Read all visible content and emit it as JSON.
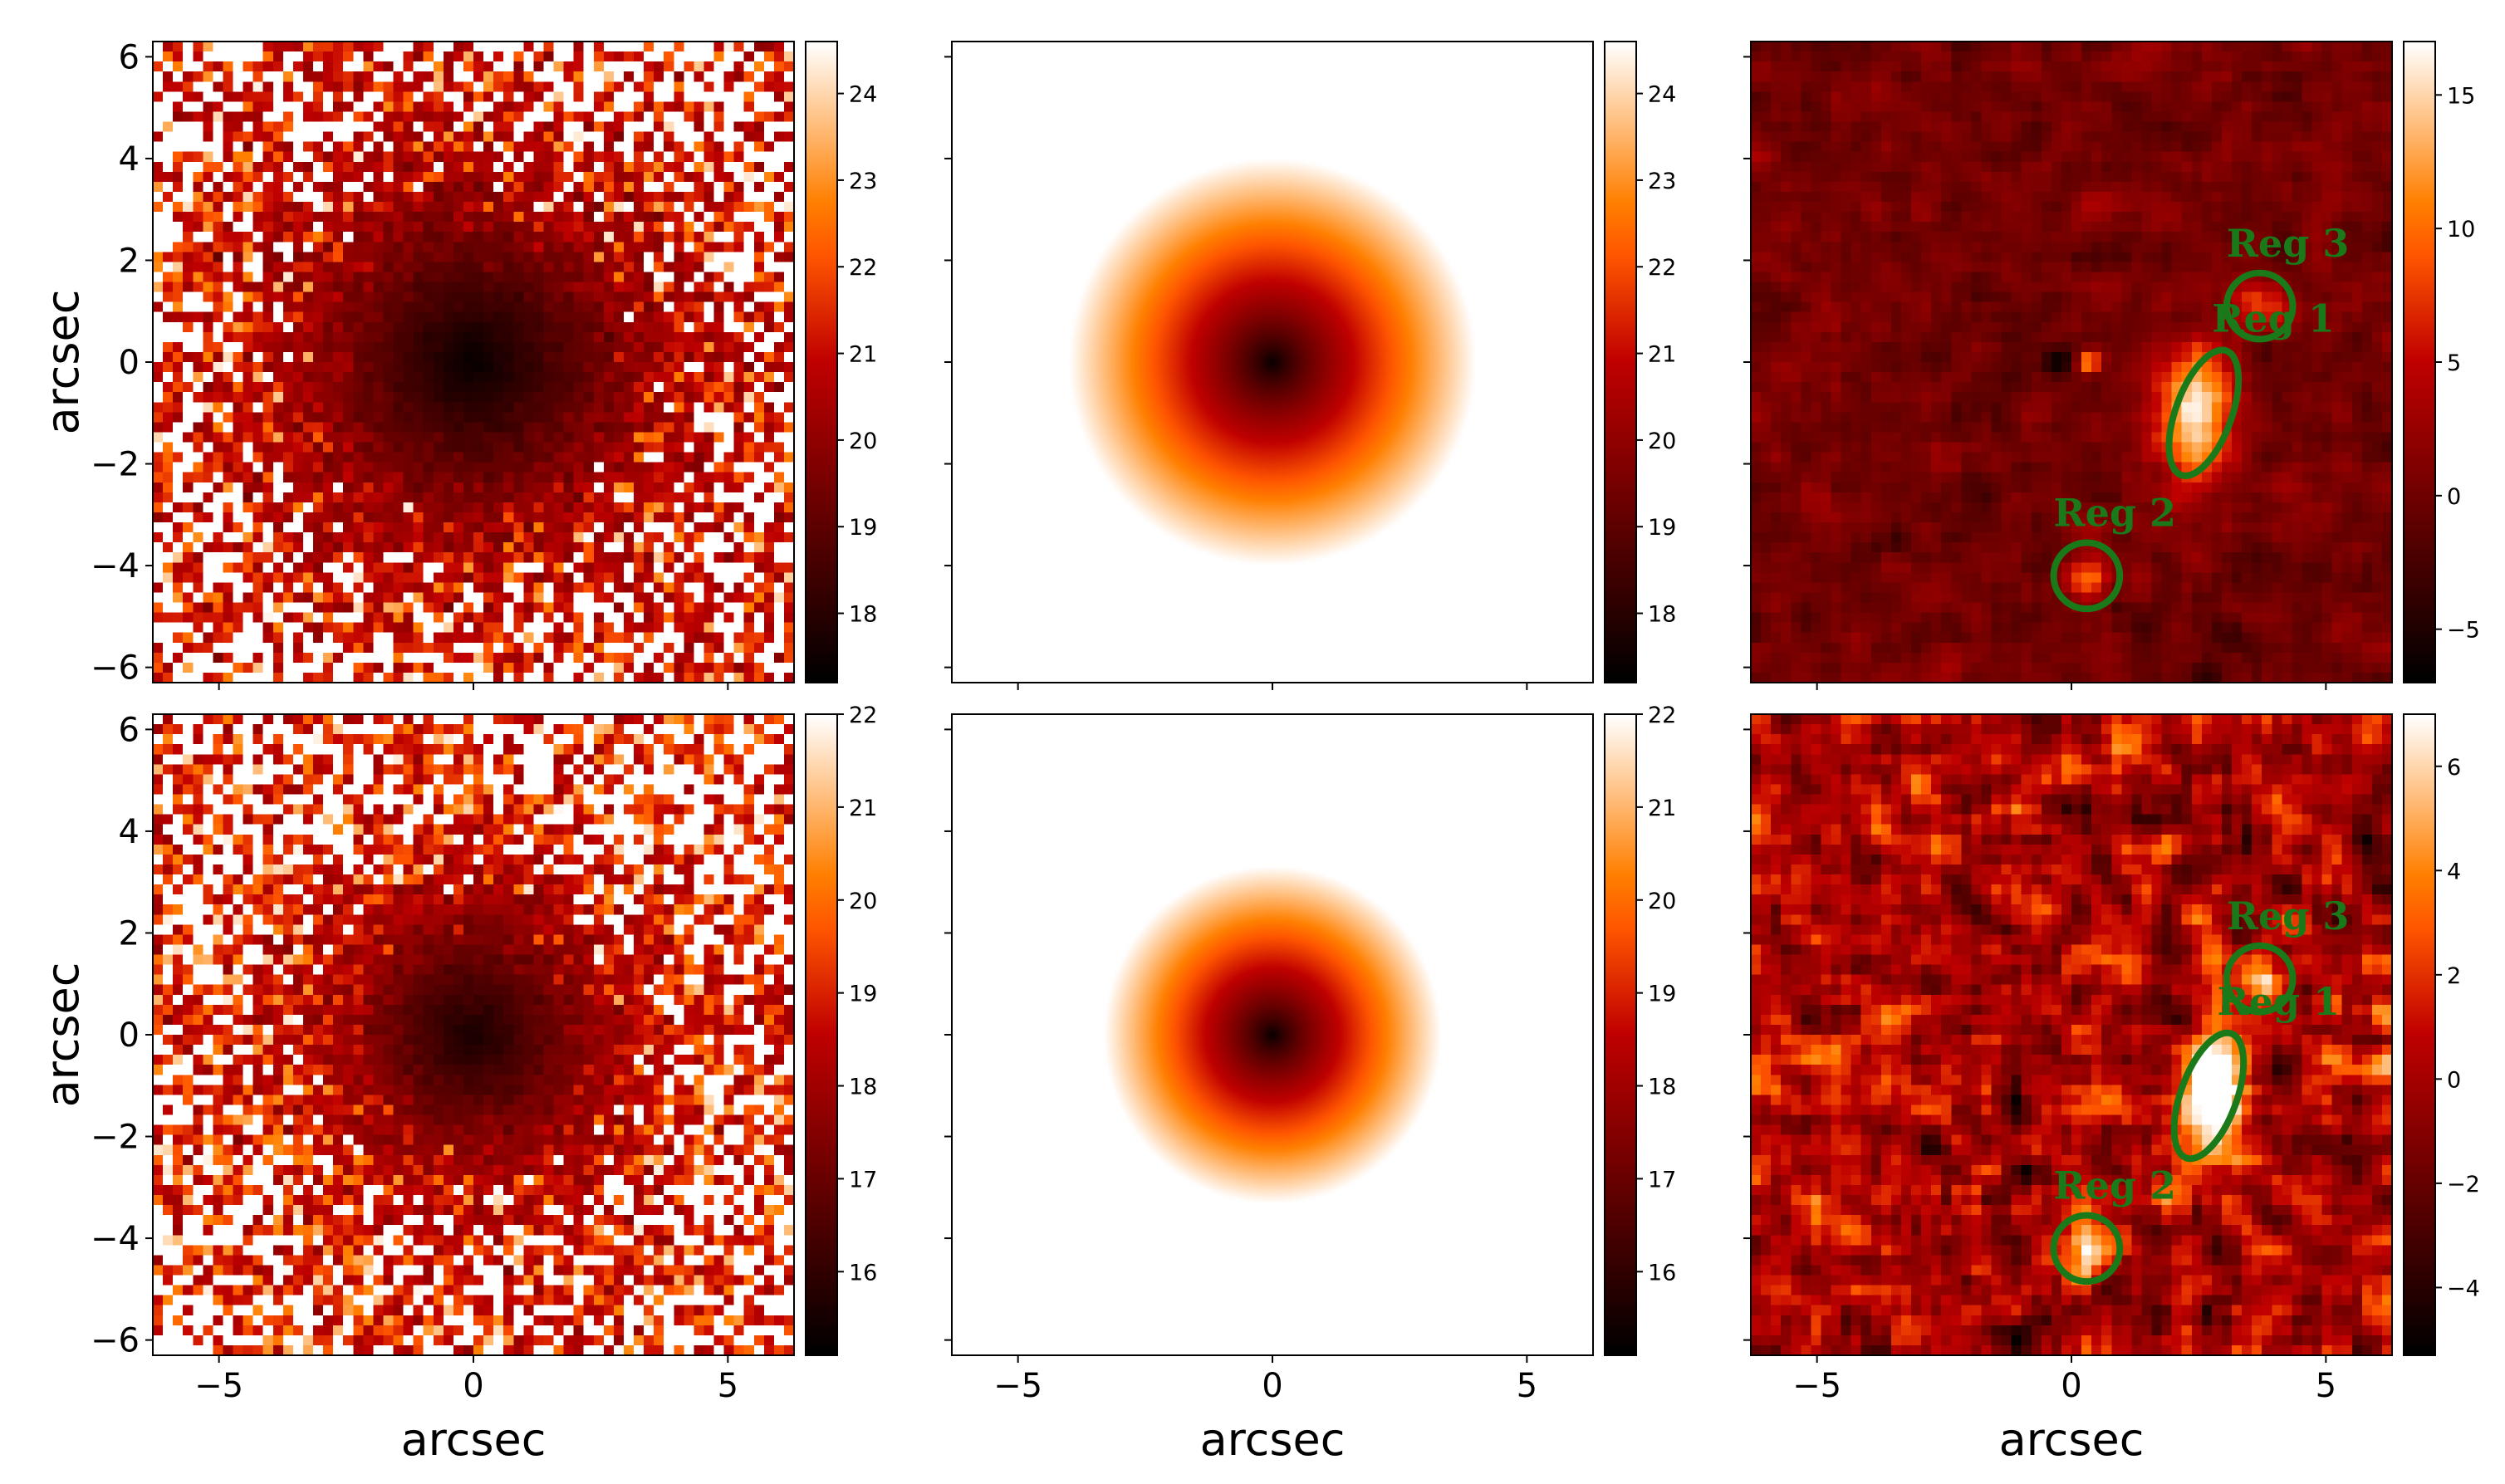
{
  "chart_data": [
    {
      "type": "heatmap",
      "panel": "row1-col1",
      "description_kind": "observed image",
      "xlim": [
        -6.3,
        6.3
      ],
      "ylim": [
        -6.3,
        6.3
      ],
      "xlabel": "",
      "ylabel": "arcsec",
      "yticks": [
        -6,
        -4,
        -2,
        0,
        2,
        4,
        6
      ],
      "xticks": [],
      "colormap": "gist_heat",
      "colorbar": {
        "range": [
          17.2,
          24.6
        ],
        "ticks": [
          18,
          19,
          20,
          21,
          22,
          23,
          24
        ]
      },
      "seed": 11,
      "mode": "obs",
      "sources": [
        {
          "x": 0.0,
          "y": 0.0,
          "peak": 7.2,
          "sigma": 1.2
        },
        {
          "x": 2.3,
          "y": -0.8,
          "peak": 3.0,
          "sigma": 1.2
        },
        {
          "x": 0.3,
          "y": -4.2,
          "peak": 1.6,
          "sigma": 0.4
        }
      ]
    },
    {
      "type": "heatmap",
      "panel": "row1-col2",
      "description_kind": "model image",
      "xlim": [
        -6.3,
        6.3
      ],
      "ylim": [
        -6.3,
        6.3
      ],
      "xlabel": "",
      "ylabel": "",
      "yticks": [],
      "xticks": [],
      "colormap": "gist_heat",
      "colorbar": {
        "range": [
          17.2,
          24.6
        ],
        "ticks": [
          18,
          19,
          20,
          21,
          22,
          23,
          24
        ]
      },
      "seed": 0,
      "mode": "model",
      "radius": 4.1
    },
    {
      "type": "heatmap",
      "panel": "row1-col3",
      "description_kind": "residual image",
      "xlim": [
        -6.3,
        6.3
      ],
      "ylim": [
        -6.3,
        6.3
      ],
      "xlabel": "",
      "ylabel": "",
      "yticks": [],
      "xticks": [],
      "colormap": "gist_heat",
      "colorbar": {
        "range": [
          -7,
          17
        ],
        "ticks": [
          -5,
          0,
          5,
          10,
          15
        ]
      },
      "seed": 23,
      "mode": "resid",
      "noise": 1.6,
      "sources": [
        {
          "x": 2.4,
          "y": -1.0,
          "peak": 16,
          "sx": 0.5,
          "sy": 1.0
        },
        {
          "x": 3.7,
          "y": 1.1,
          "peak": 8,
          "sx": 0.35,
          "sy": 0.35
        },
        {
          "x": 0.3,
          "y": -4.2,
          "peak": 8,
          "sx": 0.3,
          "sy": 0.3
        },
        {
          "x": 0.35,
          "y": 0.0,
          "peak": 14,
          "sx": 0.15,
          "sy": 0.15
        },
        {
          "x": -0.3,
          "y": 0.0,
          "peak": -6,
          "sx": 0.2,
          "sy": 0.2
        }
      ],
      "regions": [
        {
          "label": "Reg 1",
          "x": 2.6,
          "y": -1.0,
          "rx": 0.55,
          "ry": 1.3,
          "angle": 20
        },
        {
          "label": "Reg 2",
          "x": 0.3,
          "y": -4.2,
          "rx": 0.65,
          "ry": 0.65,
          "angle": 0
        },
        {
          "label": "Reg 3",
          "x": 3.7,
          "y": 1.1,
          "rx": 0.65,
          "ry": 0.65,
          "angle": 0
        }
      ]
    },
    {
      "type": "heatmap",
      "panel": "row2-col1",
      "description_kind": "observed image",
      "xlim": [
        -6.3,
        6.3
      ],
      "ylim": [
        -6.3,
        6.3
      ],
      "xlabel": "arcsec",
      "ylabel": "arcsec",
      "yticks": [
        -6,
        -4,
        -2,
        0,
        2,
        4,
        6
      ],
      "xticks": [
        -5,
        0,
        5
      ],
      "colormap": "gist_heat",
      "colorbar": {
        "range": [
          15.1,
          22.0
        ],
        "ticks": [
          16,
          17,
          18,
          19,
          20,
          21,
          22
        ]
      },
      "seed": 37,
      "mode": "obs",
      "sources": [
        {
          "x": 0.0,
          "y": 0.0,
          "peak": 6.9,
          "sigma": 1.1
        },
        {
          "x": 2.4,
          "y": -1.0,
          "peak": 1.8,
          "sigma": 1.0
        }
      ]
    },
    {
      "type": "heatmap",
      "panel": "row2-col2",
      "description_kind": "model image",
      "xlim": [
        -6.3,
        6.3
      ],
      "ylim": [
        -6.3,
        6.3
      ],
      "xlabel": "arcsec",
      "ylabel": "",
      "yticks": [],
      "xticks": [
        -5,
        0,
        5
      ],
      "colormap": "gist_heat",
      "colorbar": {
        "range": [
          15.1,
          22.0
        ],
        "ticks": [
          16,
          17,
          18,
          19,
          20,
          21,
          22
        ]
      },
      "seed": 0,
      "mode": "model",
      "radius": 3.4
    },
    {
      "type": "heatmap",
      "panel": "row2-col3",
      "description_kind": "residual image",
      "xlim": [
        -6.3,
        6.3
      ],
      "ylim": [
        -6.3,
        6.3
      ],
      "xlabel": "arcsec",
      "ylabel": "",
      "yticks": [],
      "xticks": [
        -5,
        0,
        5
      ],
      "colormap": "gist_heat",
      "colorbar": {
        "range": [
          -5.3,
          7.0
        ],
        "ticks": [
          -4,
          -2,
          0,
          2,
          4,
          6
        ]
      },
      "seed": 51,
      "mode": "resid",
      "noise": 2.4,
      "sources": [
        {
          "x": 2.8,
          "y": -1.0,
          "peak": 9,
          "sx": 0.45,
          "sy": 0.9
        },
        {
          "x": 3.7,
          "y": 1.1,
          "peak": 5,
          "sx": 0.35,
          "sy": 0.35
        },
        {
          "x": 0.3,
          "y": -4.2,
          "peak": 7,
          "sx": 0.3,
          "sy": 0.3
        }
      ],
      "regions": [
        {
          "label": "Reg 1",
          "x": 2.7,
          "y": -1.2,
          "rx": 0.55,
          "ry": 1.3,
          "angle": 20
        },
        {
          "label": "Reg 2",
          "x": 0.3,
          "y": -4.2,
          "rx": 0.65,
          "ry": 0.65,
          "angle": 0
        },
        {
          "label": "Reg 3",
          "x": 3.7,
          "y": 1.1,
          "rx": 0.65,
          "ry": 0.65,
          "angle": 0
        }
      ]
    }
  ]
}
